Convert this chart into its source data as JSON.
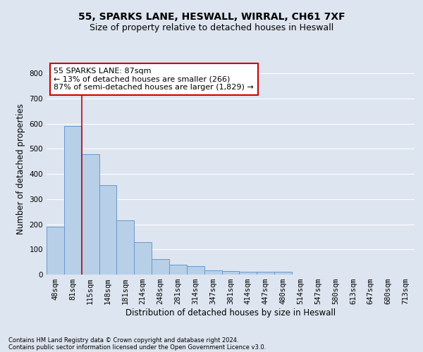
{
  "title1": "55, SPARKS LANE, HESWALL, WIRRAL, CH61 7XF",
  "title2": "Size of property relative to detached houses in Heswall",
  "xlabel": "Distribution of detached houses by size in Heswall",
  "ylabel": "Number of detached properties",
  "footnote1": "Contains HM Land Registry data © Crown copyright and database right 2024.",
  "footnote2": "Contains public sector information licensed under the Open Government Licence v3.0.",
  "bar_labels": [
    "48sqm",
    "81sqm",
    "115sqm",
    "148sqm",
    "181sqm",
    "214sqm",
    "248sqm",
    "281sqm",
    "314sqm",
    "347sqm",
    "381sqm",
    "414sqm",
    "447sqm",
    "480sqm",
    "514sqm",
    "547sqm",
    "580sqm",
    "613sqm",
    "647sqm",
    "680sqm",
    "713sqm"
  ],
  "bar_values": [
    190,
    590,
    480,
    355,
    215,
    130,
    63,
    40,
    33,
    17,
    15,
    10,
    12,
    10,
    0,
    0,
    0,
    0,
    0,
    0,
    0
  ],
  "bar_color": "#b8cfe8",
  "bar_edge_color": "#6699cc",
  "red_line_x": 1.5,
  "annotation_text": "55 SPARKS LANE: 87sqm\n← 13% of detached houses are smaller (266)\n87% of semi-detached houses are larger (1,829) →",
  "annotation_box_color": "#ffffff",
  "annotation_box_edge_color": "#cc0000",
  "ylim": [
    0,
    840
  ],
  "yticks": [
    0,
    100,
    200,
    300,
    400,
    500,
    600,
    700,
    800
  ],
  "bg_color": "#dde5f0",
  "plot_bg_color": "#dde5f0",
  "grid_color": "#ffffff",
  "title_fontsize": 10,
  "subtitle_fontsize": 9,
  "axis_label_fontsize": 8.5,
  "tick_fontsize": 7.5,
  "annotation_fontsize": 8,
  "footnote_fontsize": 6
}
